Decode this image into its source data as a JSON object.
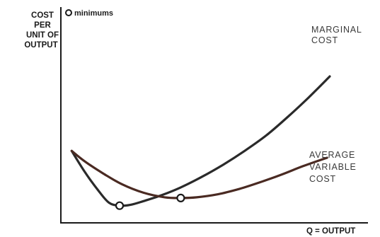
{
  "chart_data": {
    "type": "line",
    "ylabel_lines": [
      "COST",
      "PER",
      "UNIT of",
      "OUTPUT"
    ],
    "xlabel": "Q = OUTPUT",
    "legend": {
      "marker": "circle",
      "label": "minimums"
    },
    "xlim": [
      0,
      10
    ],
    "ylim": [
      0,
      10
    ],
    "series": [
      {
        "name": "MARGINAL COST",
        "label_lines": [
          "MARGINAL",
          "COST"
        ],
        "color": "#2a2a2a",
        "x": [
          0.3,
          0.8,
          1.3,
          1.7,
          2.1,
          2.5,
          3.0,
          3.7,
          4.4,
          5.2,
          6.0,
          6.8,
          7.6,
          8.4,
          9.2,
          10.0
        ],
        "y": [
          3.8,
          2.4,
          1.2,
          0.4,
          0.2,
          0.25,
          0.5,
          0.9,
          1.4,
          2.1,
          2.9,
          3.8,
          4.8,
          6.0,
          7.3,
          8.7
        ]
      },
      {
        "name": "AVERAGE VARIABLE COST",
        "label_lines": [
          "AVERAGE",
          "VARIABLE",
          "COST"
        ],
        "color": "#4a2a22",
        "x": [
          0.3,
          0.8,
          1.5,
          2.2,
          3.0,
          3.8,
          4.4,
          5.0,
          5.8,
          6.6,
          7.4,
          8.2,
          9.0,
          9.9
        ],
        "y": [
          3.8,
          3.1,
          2.3,
          1.6,
          1.05,
          0.75,
          0.7,
          0.75,
          0.95,
          1.3,
          1.75,
          2.25,
          2.8,
          3.35
        ]
      }
    ],
    "minimums": [
      {
        "series": "MARGINAL COST",
        "x": 2.1,
        "y": 0.2
      },
      {
        "series": "AVERAGE VARIABLE COST",
        "x": 4.4,
        "y": 0.7
      }
    ],
    "grid": false,
    "axis_ticks": false
  }
}
